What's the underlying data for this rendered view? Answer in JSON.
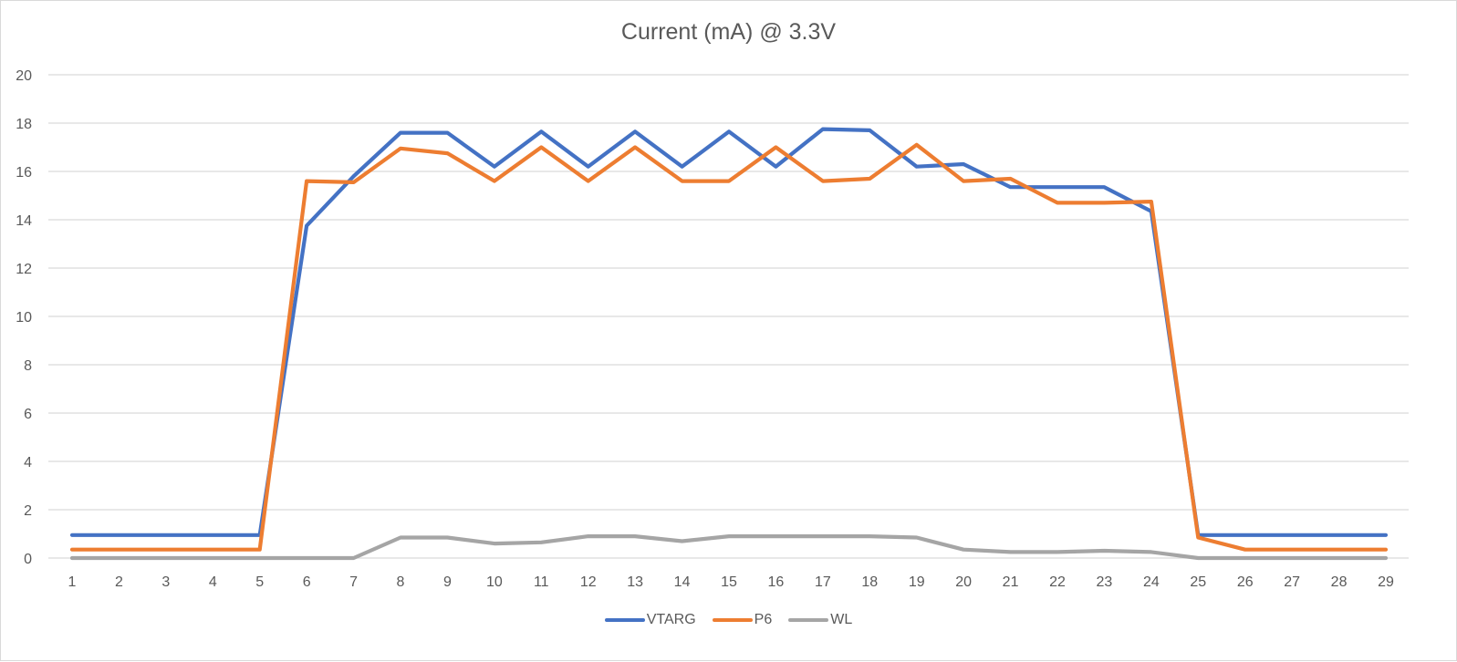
{
  "chart_data": {
    "type": "line",
    "title": "Current (mA) @ 3.3V",
    "xlabel": "",
    "ylabel": "",
    "x": [
      1,
      2,
      3,
      4,
      5,
      6,
      7,
      8,
      9,
      10,
      11,
      12,
      13,
      14,
      15,
      16,
      17,
      18,
      19,
      20,
      21,
      22,
      23,
      24,
      25,
      26,
      27,
      28,
      29
    ],
    "ylim": [
      0,
      20
    ],
    "yticks": [
      0,
      2,
      4,
      6,
      8,
      10,
      12,
      14,
      16,
      18,
      20
    ],
    "grid": true,
    "legend_position": "bottom",
    "series": [
      {
        "name": "VTARG",
        "color": "#4472c4",
        "values": [
          0.95,
          0.95,
          0.95,
          0.95,
          0.95,
          13.75,
          15.8,
          17.6,
          17.6,
          16.2,
          17.65,
          16.2,
          17.65,
          16.2,
          17.65,
          16.2,
          17.75,
          17.7,
          16.2,
          16.3,
          15.35,
          15.35,
          15.35,
          14.35,
          0.95,
          0.95,
          0.95,
          0.95,
          0.95
        ]
      },
      {
        "name": "P6",
        "color": "#ed7d31",
        "values": [
          0.35,
          0.35,
          0.35,
          0.35,
          0.35,
          15.6,
          15.55,
          16.95,
          16.75,
          15.6,
          17.0,
          15.6,
          17.0,
          15.6,
          15.6,
          17.0,
          15.6,
          15.7,
          17.1,
          15.6,
          15.7,
          14.7,
          14.7,
          14.75,
          0.85,
          0.35,
          0.35,
          0.35,
          0.35
        ]
      },
      {
        "name": "WL",
        "color": "#a5a5a5",
        "values": [
          0,
          0,
          0,
          0,
          0,
          0,
          0,
          0.85,
          0.85,
          0.6,
          0.65,
          0.9,
          0.9,
          0.7,
          0.9,
          0.9,
          0.9,
          0.9,
          0.85,
          0.35,
          0.25,
          0.25,
          0.3,
          0.25,
          0,
          0,
          0,
          0,
          0
        ]
      }
    ]
  }
}
